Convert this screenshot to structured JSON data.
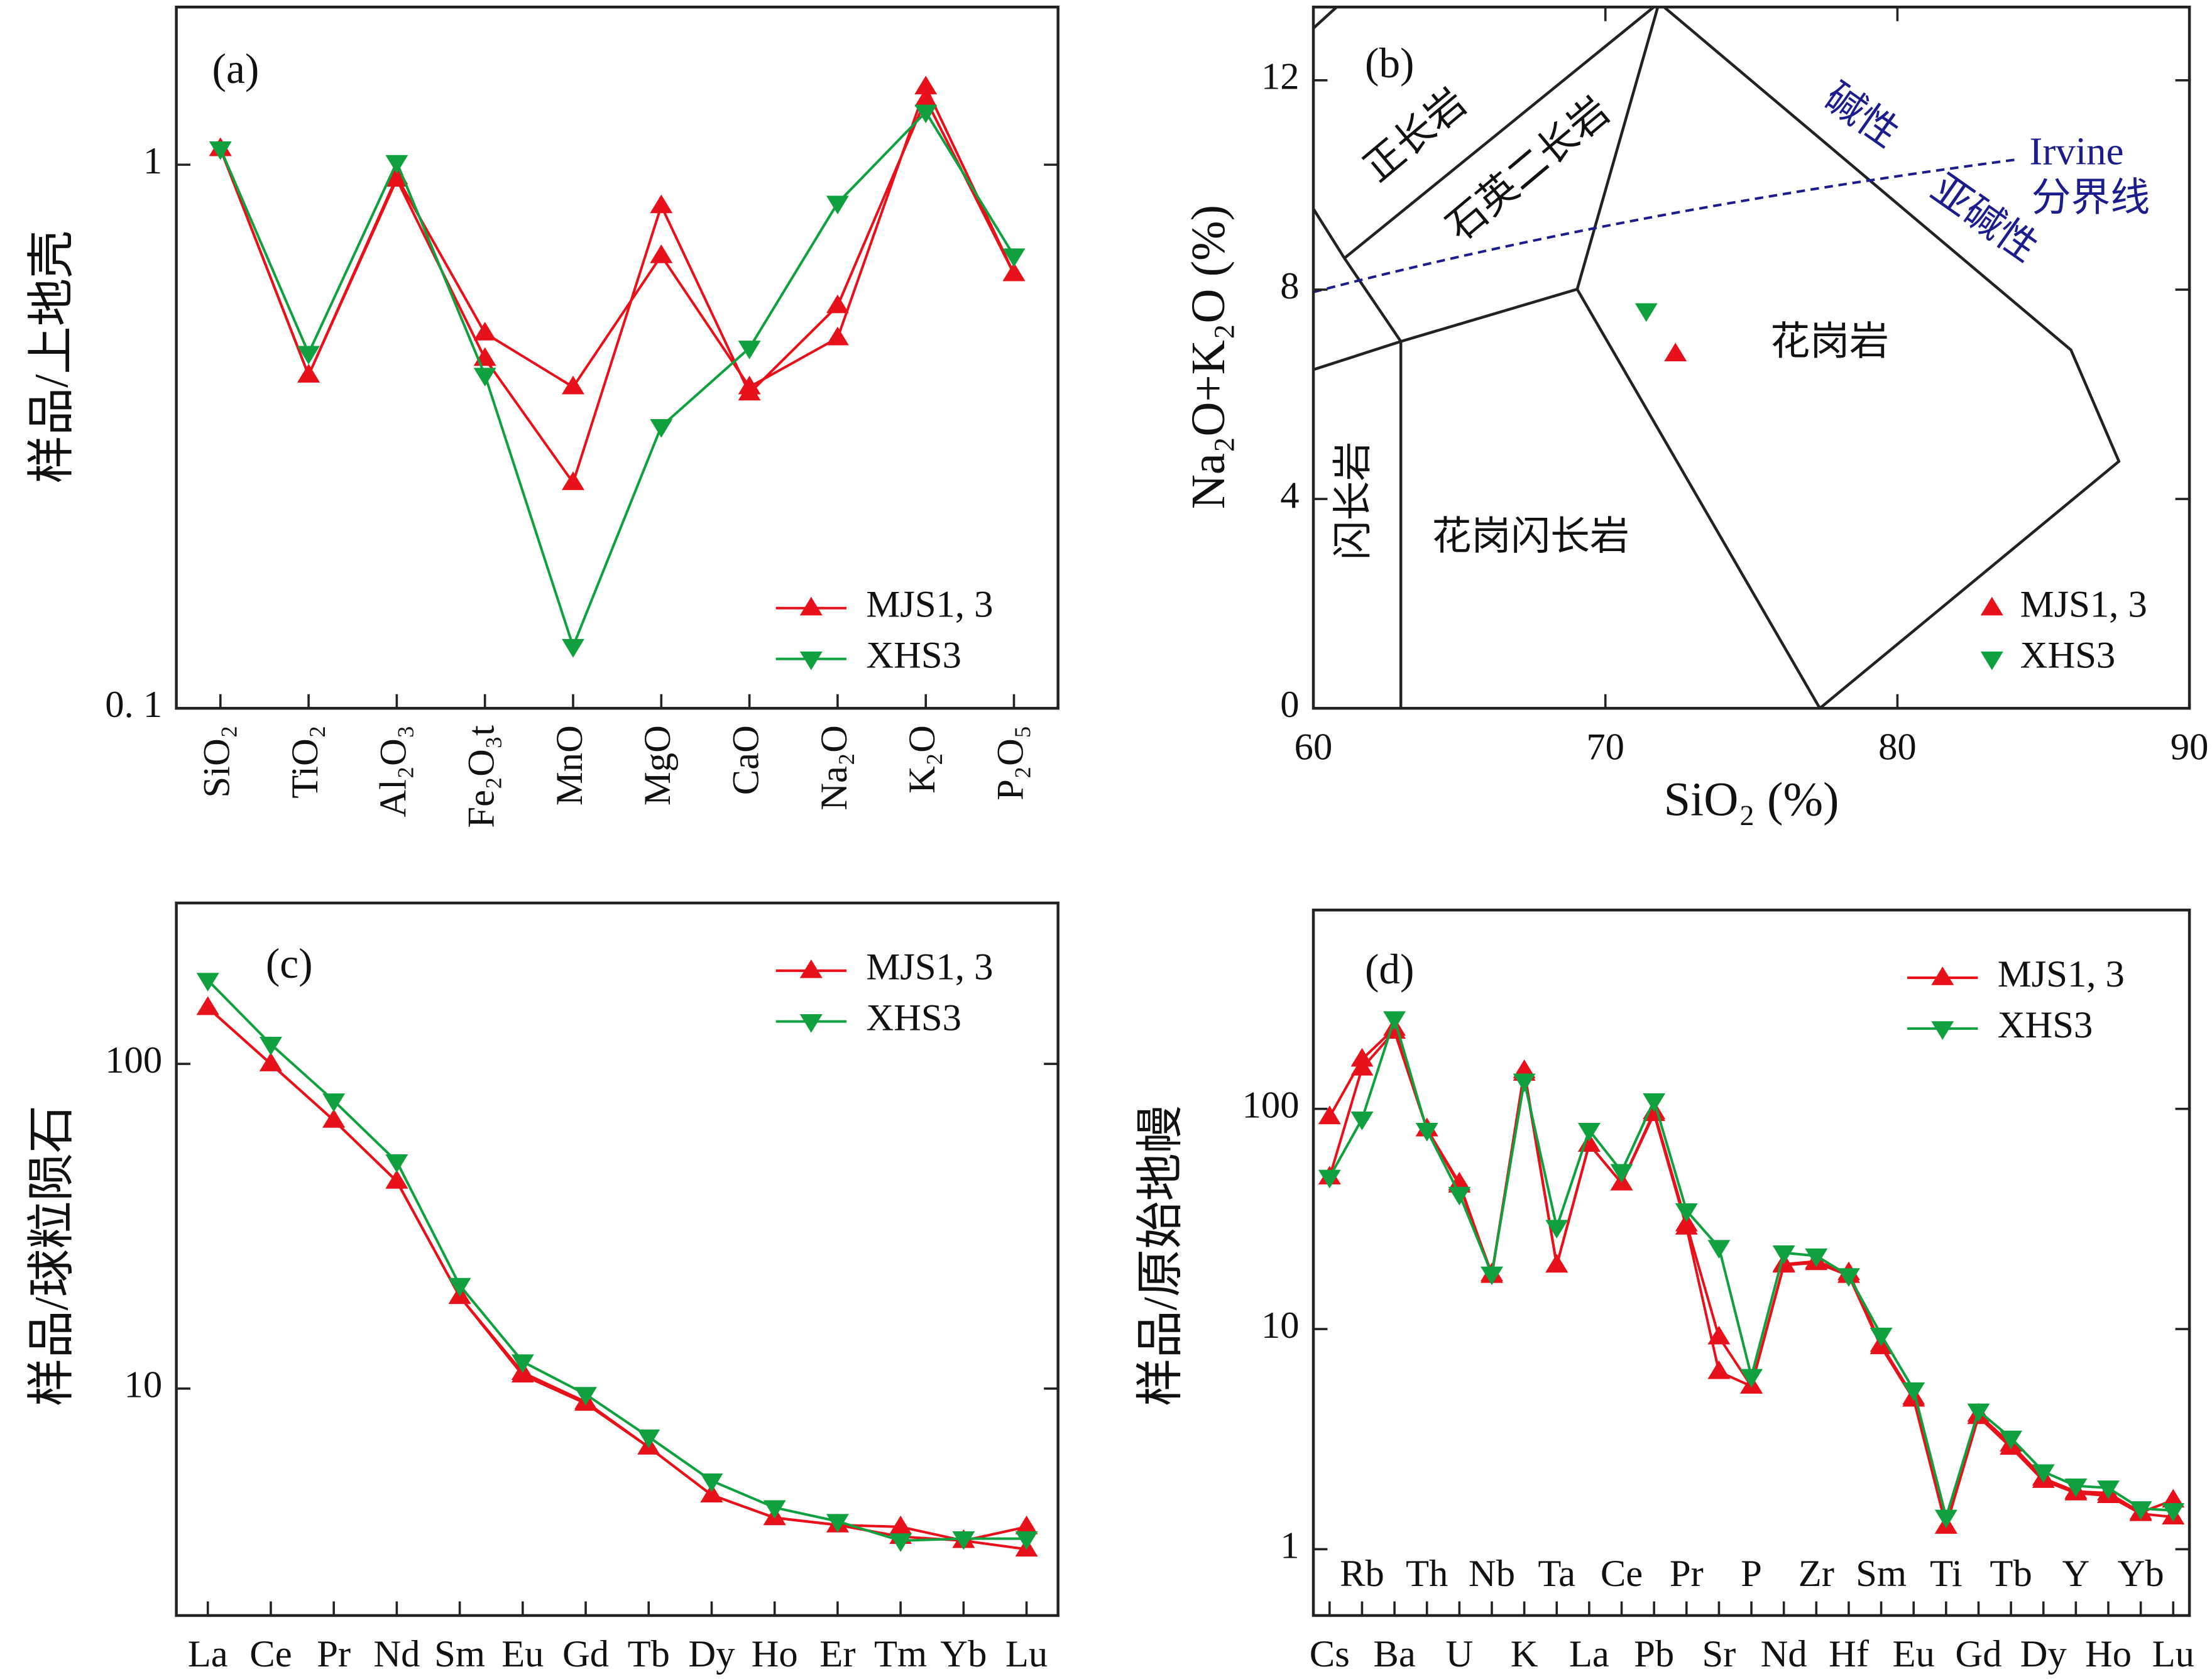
{
  "chart_data": [
    {
      "type": "line",
      "log_y": true,
      "categories": [
        "SiO₂",
        "TiO₂",
        "Al₂O₃",
        "Fe₂O₃t",
        "MnO",
        "MgO",
        "CaO",
        "Na₂O",
        "K₂O",
        "P₂O₅"
      ],
      "ylabel": "样品/上地壳",
      "annotations": [
        "(a)"
      ],
      "ylim": [
        0.1,
        1.95
      ],
      "yticks": [
        {
          "value": 0.1,
          "label": "0. 1"
        },
        1
      ],
      "legend": "lower right",
      "series": [
        {
          "name": "MJS1, 3",
          "color": "#e8101a",
          "marker": "triangle-up",
          "values": [
            [
              1.07,
              0.41,
              0.95,
              0.49,
              0.39,
              0.68,
              0.39,
              0.48,
              1.39,
              0.63
            ],
            [
              1.07,
              0.41,
              0.94,
              0.44,
              0.26,
              0.84,
              0.38,
              0.55,
              1.32,
              0.63
            ]
          ]
        },
        {
          "name": "XHS3",
          "color": "#10a040",
          "marker": "triangle-down",
          "values": [
            [
              1.07,
              0.45,
              1.01,
              0.41,
              0.13,
              0.33,
              0.46,
              0.85,
              1.25,
              0.68
            ]
          ]
        }
      ]
    },
    {
      "type": "scatter",
      "xlabel": "SiO₂ (%)",
      "ylabel": "Na₂O+K₂O (%)",
      "annotations": [
        "(b)",
        "正长岩",
        "石英二长岩",
        "花岗岩",
        "闪长岩",
        "花岗闪长岩",
        "碱性",
        "亚碱性",
        "Irvine",
        "分界线"
      ],
      "xlim": [
        60,
        90
      ],
      "xticks": [
        60,
        70,
        80,
        90
      ],
      "ylim": [
        0,
        13.4
      ],
      "yticks": [
        0,
        4,
        8,
        12
      ],
      "legend": "lower right",
      "series": [
        {
          "name": "MJS1, 3",
          "color": "#e8101a",
          "marker": "triangle-up",
          "x": [
            72.4
          ],
          "values": [
            6.77
          ]
        },
        {
          "name": "XHS3",
          "color": "#10a040",
          "marker": "triangle-down",
          "x": [
            71.4
          ],
          "values": [
            7.6
          ]
        }
      ]
    },
    {
      "type": "line",
      "log_y": true,
      "categories": [
        "La",
        "Ce",
        "Pr",
        "Nd",
        "Sm",
        "Eu",
        "Gd",
        "Tb",
        "Dy",
        "Ho",
        "Er",
        "Tm",
        "Yb",
        "Lu"
      ],
      "ylabel": "样品/球粒陨石",
      "annotations": [
        "(c)"
      ],
      "ylim": [
        2,
        313
      ],
      "yticks": [
        10,
        100
      ],
      "legend": "upper right",
      "series": [
        {
          "name": "MJS1, 3",
          "color": "#e8101a",
          "marker": "triangle-up",
          "values": [
            [
              149,
              100,
              67,
              43.5,
              19.2,
              11.2,
              9.1,
              6.6,
              4.7,
              4.0,
              3.8,
              3.75,
              3.4,
              3.75
            ],
            [
              149,
              100,
              67,
              43.5,
              19.2,
              11,
              9.0,
              6.6,
              4.7,
              4.0,
              3.8,
              3.5,
              3.4,
              3.2
            ]
          ]
        },
        {
          "name": "XHS3",
          "color": "#10a040",
          "marker": "triangle-down",
          "values": [
            [
              181,
              115,
              77,
              50,
              20.8,
              12.1,
              9.6,
              7.1,
              5.2,
              4.3,
              3.9,
              3.4,
              3.45,
              3.45
            ]
          ]
        }
      ]
    },
    {
      "type": "line",
      "log_y": true,
      "categories": [
        "Cs",
        "Rb",
        "Ba",
        "Th",
        "U",
        "Nb",
        "K",
        "Ta",
        "La",
        "Ce",
        "Pb",
        "Pr",
        "Sr",
        "P",
        "Nd",
        "Zr",
        "Hf",
        "Sm",
        "Eu",
        "Ti",
        "Gd",
        "Tb",
        "Dy",
        "Y",
        "Ho",
        "Yb",
        "Lu"
      ],
      "ylabel": "样品/原始地幔",
      "annotations": [
        "(d)"
      ],
      "ylim": [
        0.5,
        800
      ],
      "yticks": [
        1,
        10,
        100
      ],
      "legend": "upper right",
      "series": [
        {
          "name": "MJS1, 3",
          "color": "#e8101a",
          "marker": "triangle-up",
          "values": [
            [
              92,
              168,
              232,
              81,
              46,
              17.5,
              149,
              19.5,
              69,
              46,
              97,
              30,
              9.2,
              5.5,
              19.7,
              20.3,
              18,
              8.5,
              4.9,
              1.27,
              4.1,
              3.0,
              2.1,
              1.83,
              1.8,
              1.47,
              1.67
            ],
            [
              49,
              153,
              225,
              81,
              45,
              17.8,
              145,
              19.5,
              69,
              46,
              95,
              29,
              6.4,
              5.5,
              19.5,
              20,
              17.5,
              8.3,
              4.8,
              1.27,
              4.0,
              2.9,
              2.05,
              1.8,
              1.75,
              1.45,
              1.4
            ]
          ]
        },
        {
          "name": "XHS3",
          "color": "#10a040",
          "marker": "triangle-down",
          "values": [
            [
              49,
              90,
              257,
              80,
              41,
              17.8,
              134,
              29,
              80,
              52,
              109,
              34.5,
              23.5,
              6.1,
              22.2,
              21.5,
              17.5,
              9.4,
              5.3,
              1.4,
              4.25,
              3.2,
              2.25,
              1.94,
              1.9,
              1.53,
              1.5
            ]
          ]
        }
      ]
    }
  ]
}
